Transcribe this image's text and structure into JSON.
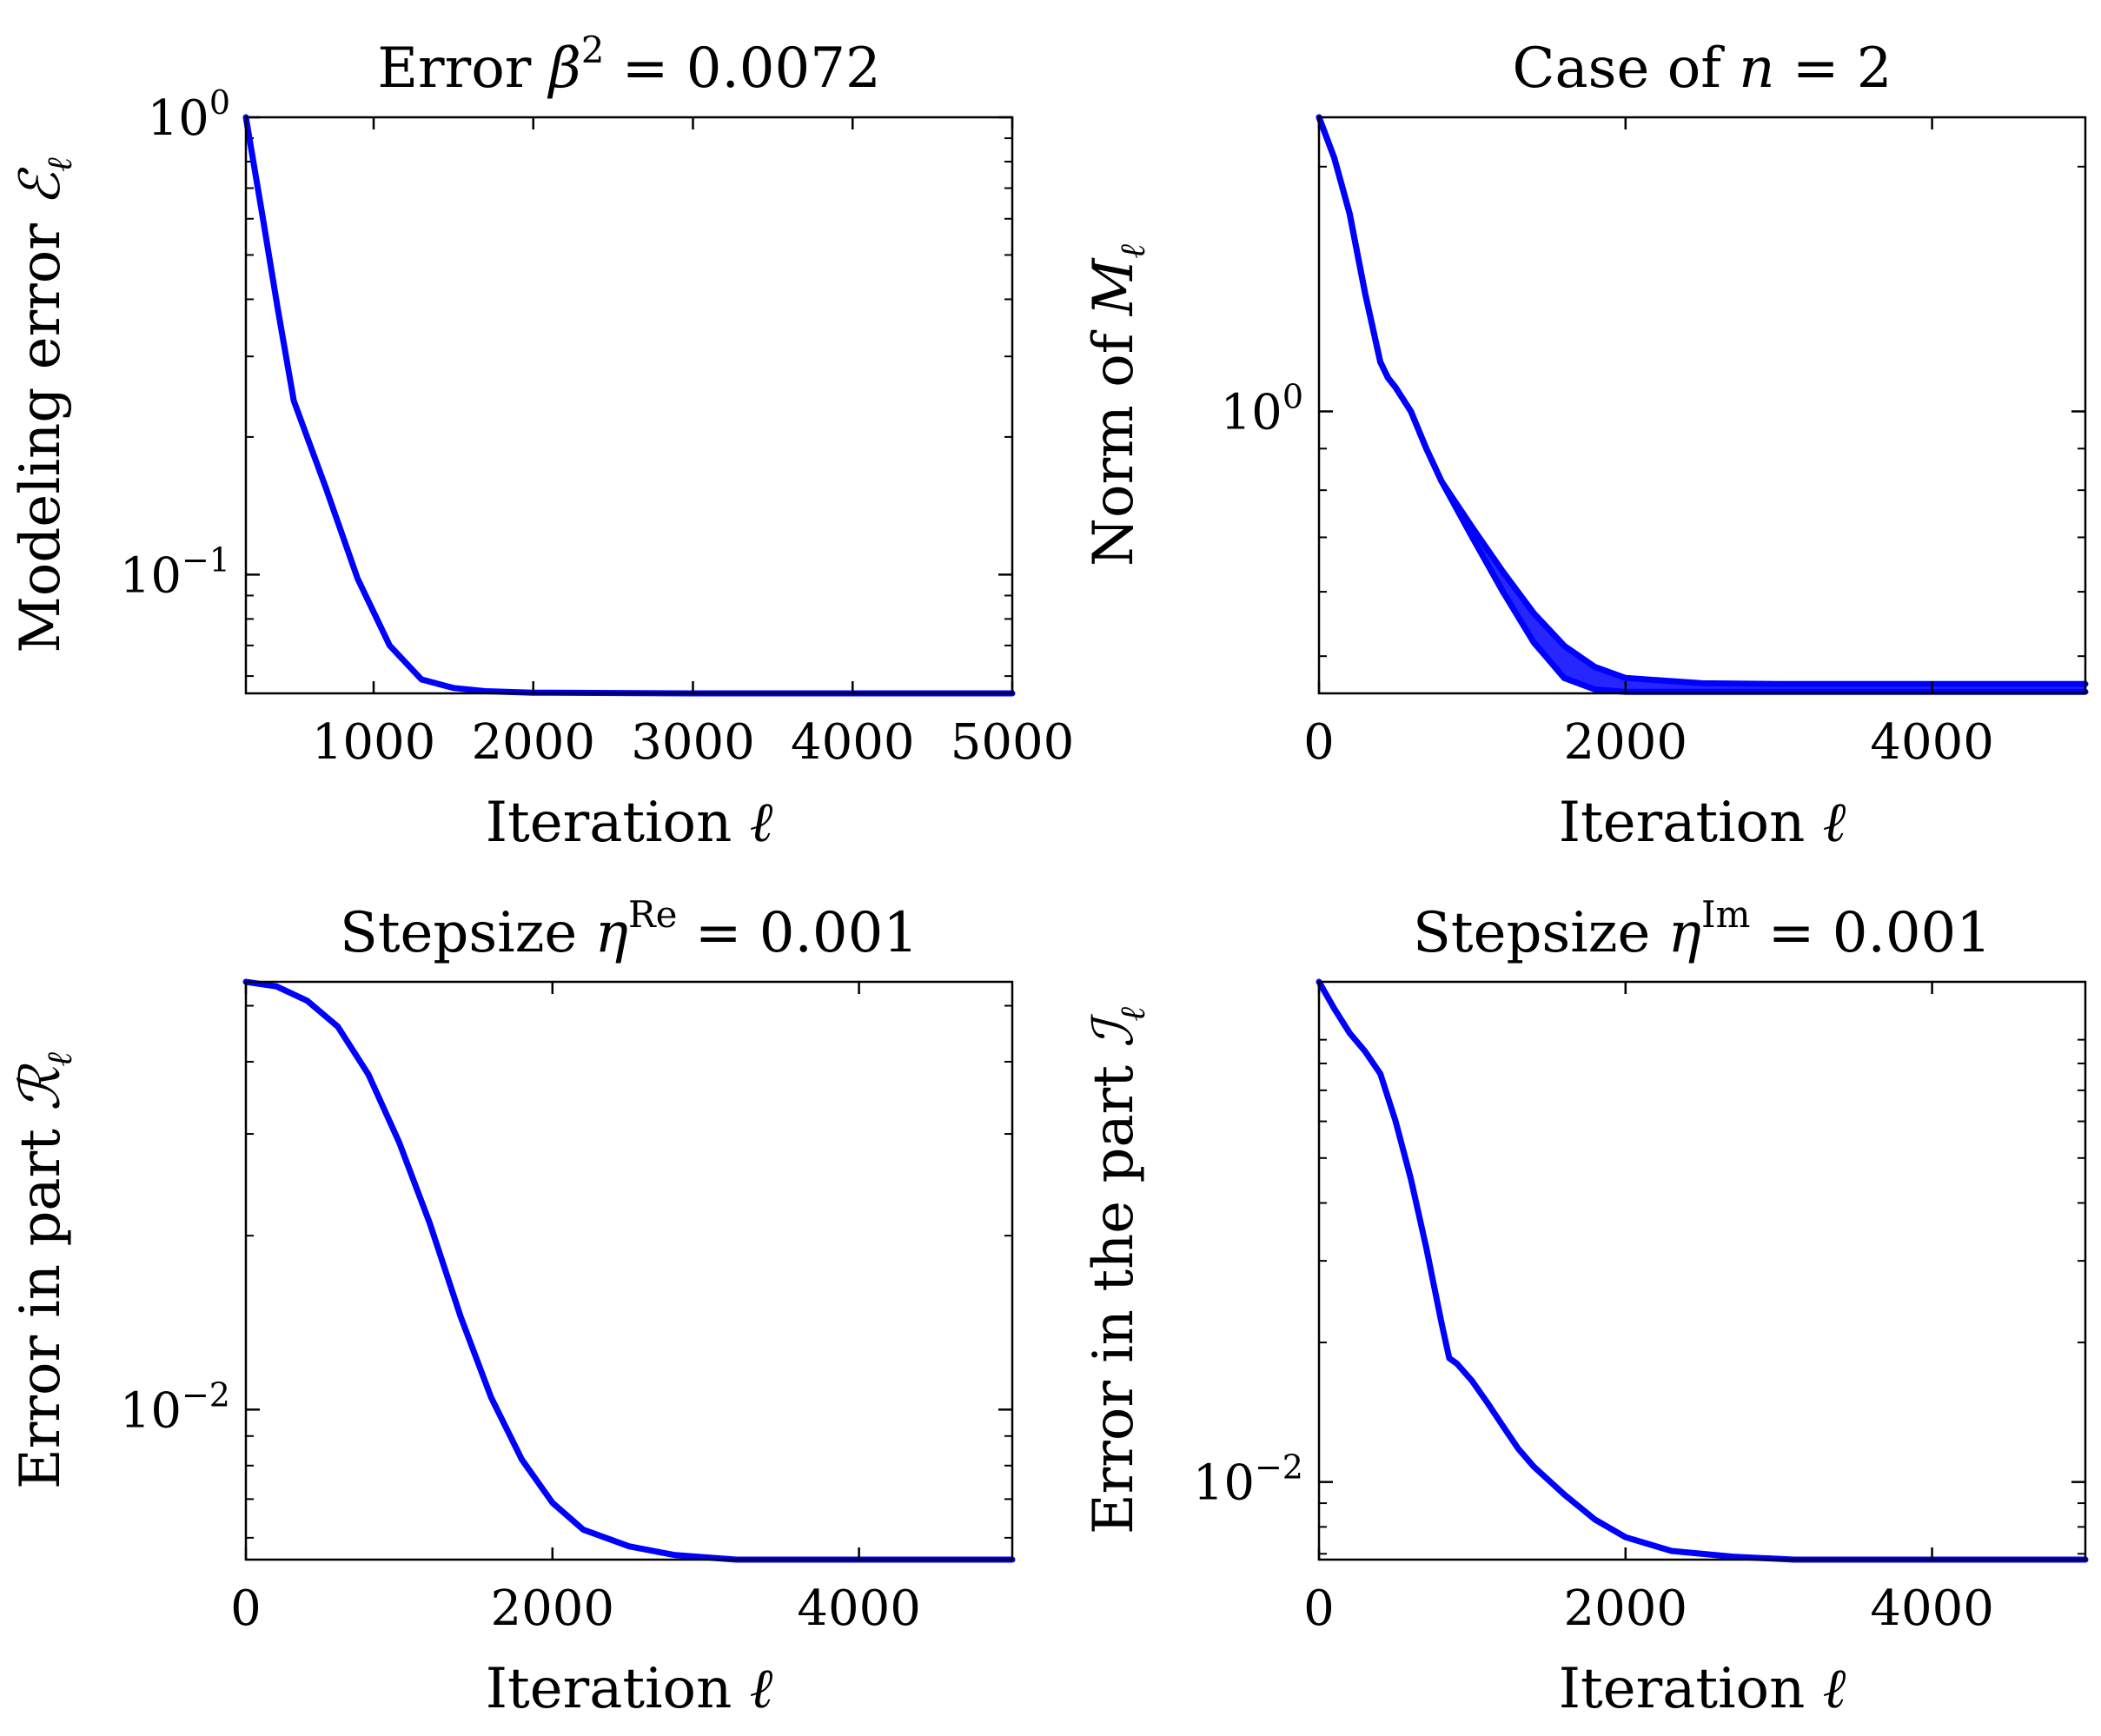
{
  "figure": {
    "line_color": "#0000ff"
  },
  "chart_data": [
    {
      "type": "line",
      "scale": "log-y",
      "title_text": "Error ",
      "title_math": {
        "sym": "β",
        "sup": "2",
        "rest": " = 0.0072"
      },
      "xlabel": {
        "text": "Iteration ",
        "sym": "ℓ"
      },
      "ylabel": {
        "text": "Modeling error ",
        "sym": "ℰ",
        "sub": "ℓ"
      },
      "xlim": [
        200,
        5000
      ],
      "ylim": [
        0.055,
        1.0
      ],
      "xticks": [
        {
          "value": 1000,
          "label": "1000"
        },
        {
          "value": 2000,
          "label": "2000"
        },
        {
          "value": 3000,
          "label": "3000"
        },
        {
          "value": 4000,
          "label": "4000"
        },
        {
          "value": 5000,
          "label": "5000"
        }
      ],
      "yticks": [
        {
          "value": 1.0,
          "base": "10",
          "exp": "0"
        },
        {
          "value": 0.1,
          "base": "10",
          "exp": "−1"
        }
      ],
      "series": [
        {
          "name": "Modeling error",
          "x": [
            200,
            300,
            400,
            500,
            700,
            900,
            1100,
            1300,
            1500,
            1700,
            2000,
            3000,
            4000,
            5000
          ],
          "y": [
            1.0,
            0.62,
            0.38,
            0.24,
            0.155,
            0.098,
            0.07,
            0.059,
            0.0565,
            0.0556,
            0.0552,
            0.055,
            0.055,
            0.055
          ]
        }
      ]
    },
    {
      "type": "line",
      "scale": "log-y",
      "title_text": "Case of ",
      "title_math": {
        "sym": "n",
        "sup": "",
        "rest": " = 2"
      },
      "xlabel": {
        "text": "Iteration ",
        "sym": "ℓ"
      },
      "ylabel": {
        "text": "Norm of ",
        "sym": "M",
        "sub": "ℓ"
      },
      "xlim": [
        0,
        5000
      ],
      "ylim": [
        0.45,
        2.3
      ],
      "xticks": [
        {
          "value": 0,
          "label": "0"
        },
        {
          "value": 2000,
          "label": "2000"
        },
        {
          "value": 4000,
          "label": "4000"
        }
      ],
      "yticks": [
        {
          "value": 1.0,
          "base": "10",
          "exp": "0"
        }
      ],
      "series": [
        {
          "name": "Norm (upper)",
          "x": [
            0,
            100,
            200,
            300,
            400,
            450,
            500,
            600,
            700,
            800,
            1000,
            1200,
            1400,
            1600,
            1800,
            2000,
            2500,
            3000,
            4000,
            5000
          ],
          "y": [
            2.3,
            2.05,
            1.75,
            1.4,
            1.15,
            1.1,
            1.07,
            1.0,
            0.9,
            0.82,
            0.72,
            0.635,
            0.565,
            0.515,
            0.485,
            0.47,
            0.463,
            0.462,
            0.462,
            0.462
          ]
        },
        {
          "name": "Norm (lower)",
          "x": [
            0,
            100,
            200,
            300,
            400,
            450,
            500,
            600,
            700,
            800,
            1000,
            1200,
            1400,
            1600,
            1800,
            2000,
            2500,
            3000,
            4000,
            5000
          ],
          "y": [
            2.3,
            2.05,
            1.75,
            1.4,
            1.15,
            1.1,
            1.07,
            1.0,
            0.9,
            0.82,
            0.7,
            0.6,
            0.52,
            0.47,
            0.455,
            0.452,
            0.452,
            0.452,
            0.452,
            0.452
          ]
        }
      ]
    },
    {
      "type": "line",
      "scale": "log-y",
      "title_text": "Stepsize ",
      "title_math": {
        "sym": "η",
        "sup": "Re",
        "rest": " = 0.001"
      },
      "xlabel": {
        "text": "Iteration ",
        "sym": "ℓ"
      },
      "ylabel": {
        "text": "Error in part ",
        "sym": "ℛ",
        "sub": "ℓ"
      },
      "xlim": [
        0,
        5000
      ],
      "ylim": [
        0.0055,
        0.055
      ],
      "xticks": [
        {
          "value": 0,
          "label": "0"
        },
        {
          "value": 2000,
          "label": "2000"
        },
        {
          "value": 4000,
          "label": "4000"
        }
      ],
      "yticks": [
        {
          "value": 0.01,
          "base": "10",
          "exp": "−2"
        }
      ],
      "series": [
        {
          "name": "Error in part R",
          "x": [
            0,
            200,
            400,
            600,
            800,
            1000,
            1200,
            1400,
            1600,
            1800,
            2000,
            2200,
            2500,
            2800,
            3200,
            3600,
            4000,
            5000
          ],
          "y": [
            0.055,
            0.054,
            0.051,
            0.046,
            0.038,
            0.029,
            0.021,
            0.0145,
            0.0105,
            0.0082,
            0.0069,
            0.0062,
            0.0058,
            0.0056,
            0.0055,
            0.0055,
            0.0055,
            0.0055
          ]
        }
      ]
    },
    {
      "type": "line",
      "scale": "log-y",
      "title_text": "Stepsize ",
      "title_math": {
        "sym": "η",
        "sup": "Im",
        "rest": " = 0.001"
      },
      "xlabel": {
        "text": "Iteration ",
        "sym": "ℓ"
      },
      "ylabel": {
        "text": "Error in the part ",
        "sym": "ℐ",
        "sub": "ℓ"
      },
      "xlim": [
        0,
        5000
      ],
      "ylim": [
        0.0068,
        0.12
      ],
      "xticks": [
        {
          "value": 0,
          "label": "0"
        },
        {
          "value": 2000,
          "label": "2000"
        },
        {
          "value": 4000,
          "label": "4000"
        }
      ],
      "yticks": [
        {
          "value": 0.01,
          "base": "10",
          "exp": "−2"
        }
      ],
      "series": [
        {
          "name": "Error in part I",
          "x": [
            0,
            100,
            200,
            300,
            400,
            500,
            600,
            700,
            800,
            850,
            900,
            1000,
            1100,
            1200,
            1300,
            1400,
            1600,
            1800,
            2000,
            2300,
            2700,
            3100,
            3500,
            4000,
            5000
          ],
          "y": [
            0.12,
            0.105,
            0.093,
            0.085,
            0.076,
            0.06,
            0.045,
            0.032,
            0.022,
            0.0185,
            0.018,
            0.0165,
            0.0148,
            0.0132,
            0.0118,
            0.0108,
            0.0094,
            0.0083,
            0.0076,
            0.0071,
            0.0069,
            0.0068,
            0.0068,
            0.0068,
            0.0068
          ]
        }
      ]
    }
  ]
}
